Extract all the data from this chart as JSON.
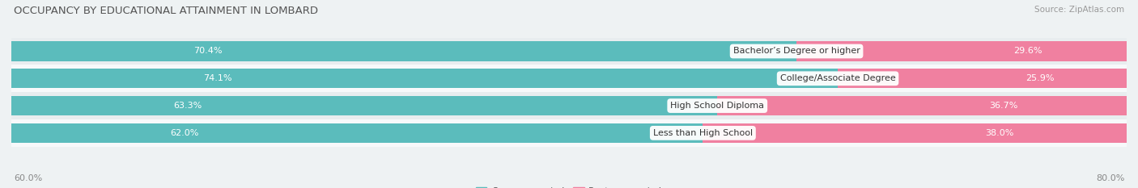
{
  "title": "OCCUPANCY BY EDUCATIONAL ATTAINMENT IN LOMBARD",
  "source": "Source: ZipAtlas.com",
  "categories": [
    "Less than High School",
    "High School Diploma",
    "College/Associate Degree",
    "Bachelor’s Degree or higher"
  ],
  "owner_pct": [
    62.0,
    63.3,
    74.1,
    70.4
  ],
  "renter_pct": [
    38.0,
    36.7,
    25.9,
    29.6
  ],
  "owner_color": "#5bbcbc",
  "renter_color": "#f080a0",
  "background_color": "#eef2f3",
  "row_light_color": "#f7f9fa",
  "row_dark_color": "#e8edef",
  "title_fontsize": 9.5,
  "source_fontsize": 7.5,
  "label_fontsize": 8,
  "pct_fontsize": 8,
  "legend_fontsize": 8,
  "x_left_label": "60.0%",
  "x_right_label": "80.0%",
  "bar_height": 0.72,
  "total_width": 100
}
